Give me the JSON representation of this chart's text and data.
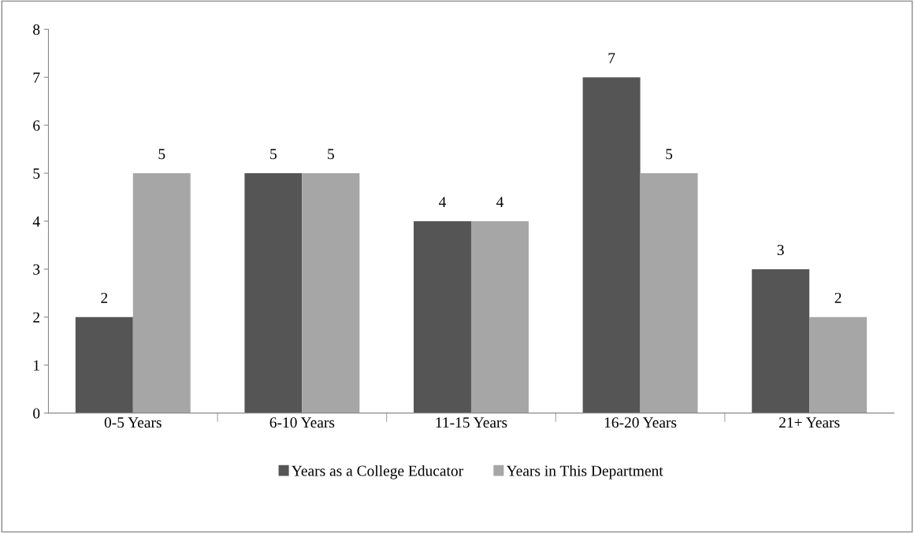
{
  "chart_data": {
    "type": "bar",
    "categories": [
      "0-5 Years",
      "6-10 Years",
      "11-15 Years",
      "16-20 Years",
      "21+ Years"
    ],
    "series": [
      {
        "name": "Years as a College Educator",
        "color": "#555555",
        "values": [
          2,
          5,
          4,
          7,
          3
        ]
      },
      {
        "name": "Years in This Department",
        "color": "#a6a6a6",
        "values": [
          5,
          5,
          4,
          5,
          2
        ]
      }
    ],
    "ylim": [
      0,
      8
    ],
    "yticks": [
      0,
      1,
      2,
      3,
      4,
      5,
      6,
      7,
      8
    ],
    "data_labels": true,
    "grid": false,
    "legend": "bottom"
  }
}
